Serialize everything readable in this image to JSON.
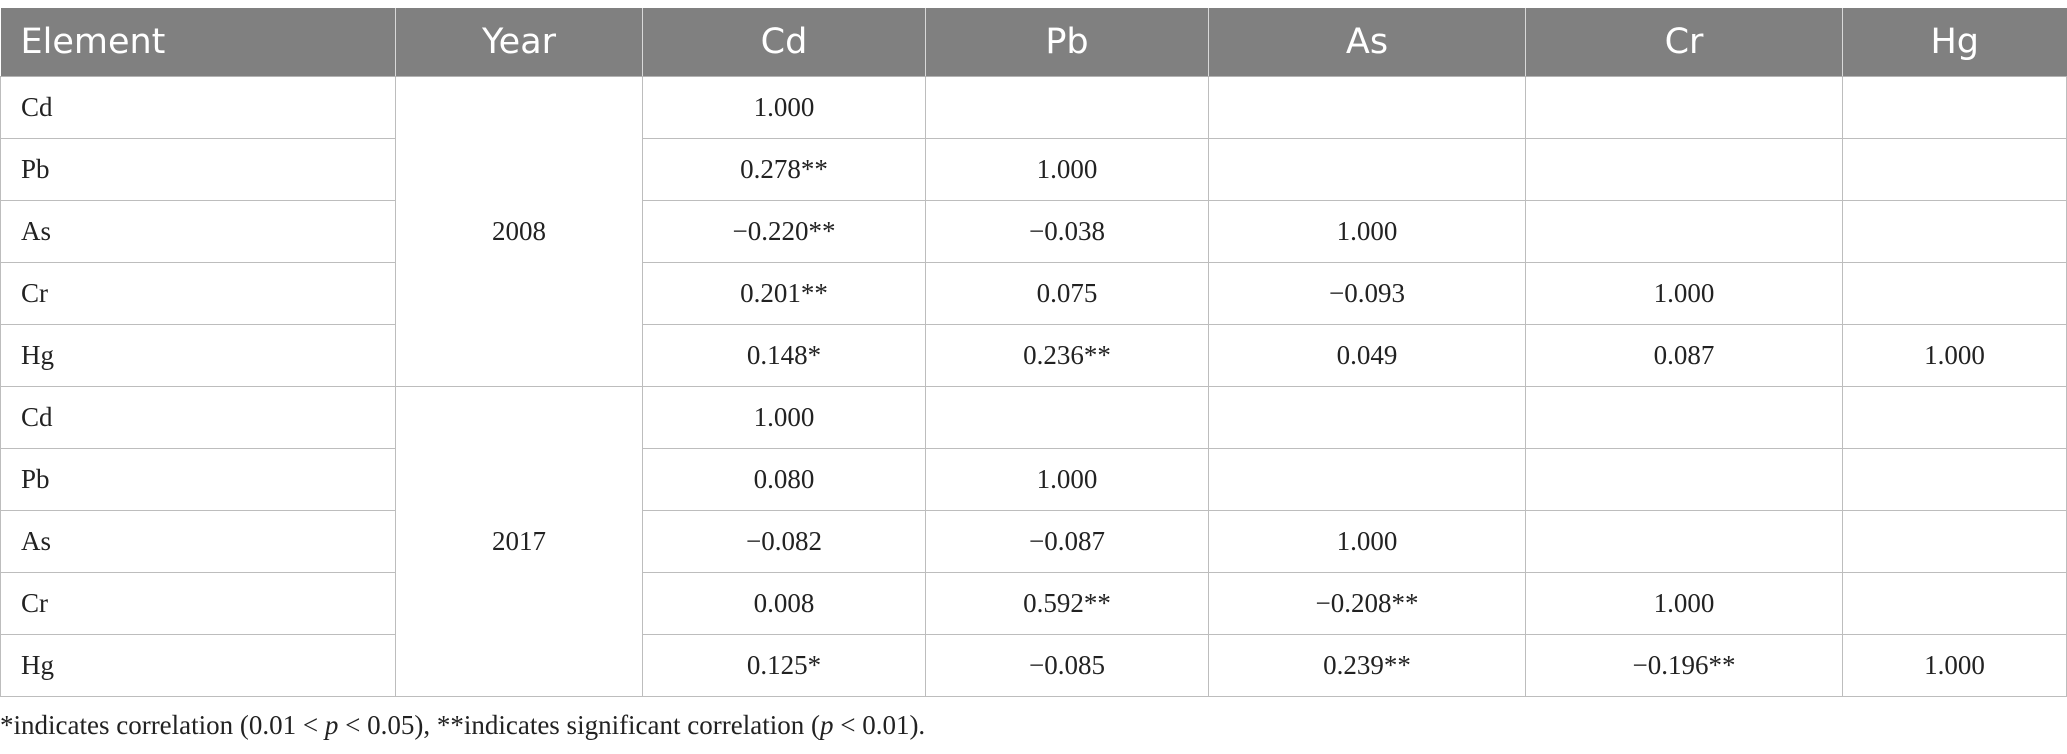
{
  "table": {
    "headers": [
      "Element",
      "Year",
      "Cd",
      "Pb",
      "As",
      "Cr",
      "Hg"
    ],
    "groups": [
      {
        "year": "2008",
        "rows": [
          {
            "element": "Cd",
            "values": [
              "1.000",
              "",
              "",
              "",
              ""
            ]
          },
          {
            "element": "Pb",
            "values": [
              "0.278**",
              "1.000",
              "",
              "",
              ""
            ]
          },
          {
            "element": "As",
            "values": [
              "−0.220**",
              "−0.038",
              "1.000",
              "",
              ""
            ]
          },
          {
            "element": "Cr",
            "values": [
              "0.201**",
              "0.075",
              "−0.093",
              "1.000",
              ""
            ]
          },
          {
            "element": "Hg",
            "values": [
              "0.148*",
              "0.236**",
              "0.049",
              "0.087",
              "1.000"
            ]
          }
        ]
      },
      {
        "year": "2017",
        "rows": [
          {
            "element": "Cd",
            "values": [
              "1.000",
              "",
              "",
              "",
              ""
            ]
          },
          {
            "element": "Pb",
            "values": [
              "0.080",
              "1.000",
              "",
              "",
              ""
            ]
          },
          {
            "element": "As",
            "values": [
              "−0.082",
              "−0.087",
              "1.000",
              "",
              ""
            ]
          },
          {
            "element": "Cr",
            "values": [
              "0.008",
              "0.592**",
              "−0.208**",
              "1.000",
              ""
            ]
          },
          {
            "element": "Hg",
            "values": [
              "0.125*",
              "−0.085",
              "0.239**",
              "−0.196**",
              "1.000"
            ]
          }
        ]
      }
    ]
  },
  "footnote": {
    "part1": "*indicates correlation (0.01 < ",
    "p1": "p",
    "part2": " < 0.05), **indicates significant correlation (",
    "p2": "p",
    "part3": " < 0.01)."
  },
  "colors": {
    "header_bg": "#808080",
    "header_text": "#ffffff",
    "border": "#bdbdbd",
    "text": "#222222"
  }
}
